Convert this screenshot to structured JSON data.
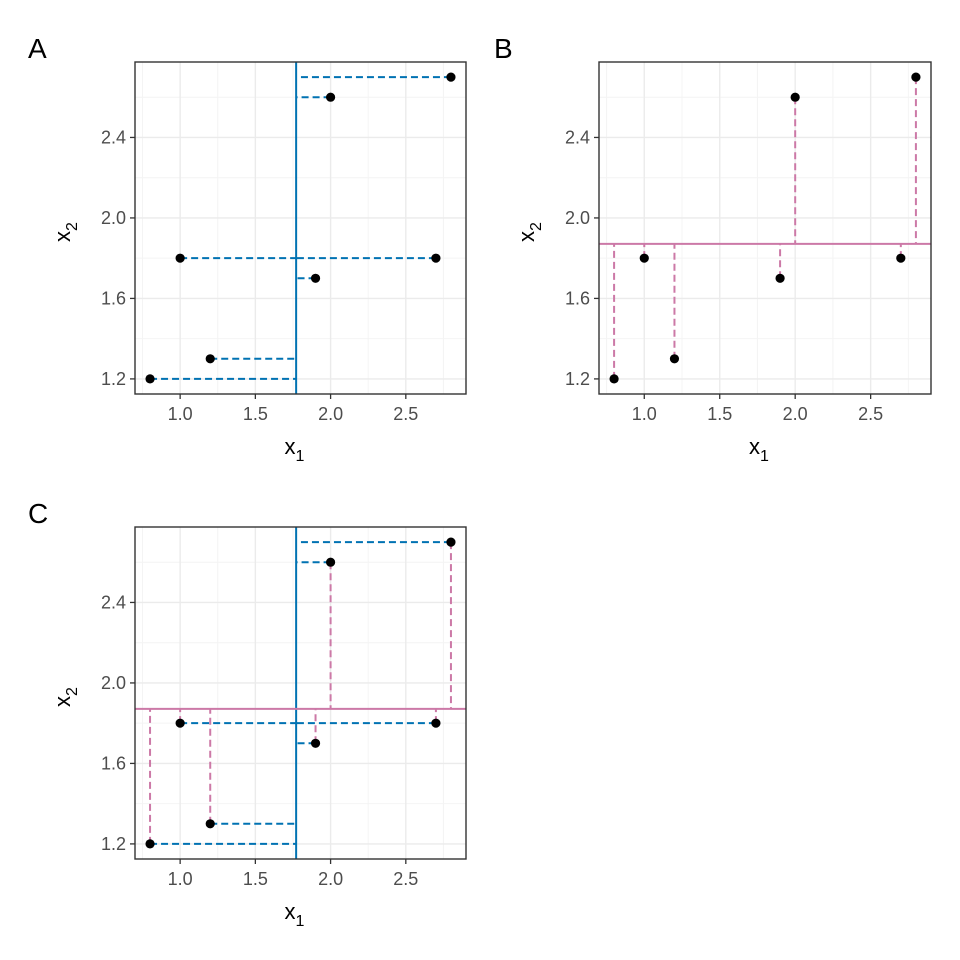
{
  "colors": {
    "mean_x1_line": "#0072B2",
    "mean_x2_line": "#CC79A7",
    "point_fill": "#000000",
    "grid_major": "#ebebeb",
    "grid_minor": "#f4f4f4",
    "panel_border": "#333333"
  },
  "chart_data": [
    {
      "type": "scatter",
      "tag": "A",
      "xlabel": "x",
      "xlabel_sub": "1",
      "ylabel": "x",
      "ylabel_sub": "2",
      "xlim": [
        0.7,
        2.9
      ],
      "ylim": [
        1.125,
        2.775
      ],
      "xticks": [
        "1.0",
        "1.5",
        "2.0",
        "2.5"
      ],
      "yticks": [
        "1.2",
        "1.6",
        "2.0",
        "2.4"
      ],
      "grid": true,
      "points": {
        "x": [
          0.8,
          1.0,
          1.2,
          1.9,
          2.0,
          2.7,
          2.8
        ],
        "y": [
          1.2,
          1.8,
          1.3,
          1.7,
          2.6,
          1.8,
          2.7
        ]
      },
      "mean_x1": 1.771,
      "mean_x2": 1.871,
      "show_mean_x1": true,
      "show_mean_x2": false
    },
    {
      "type": "scatter",
      "tag": "B",
      "xlabel": "x",
      "xlabel_sub": "1",
      "ylabel": "x",
      "ylabel_sub": "2",
      "xlim": [
        0.7,
        2.9
      ],
      "ylim": [
        1.125,
        2.775
      ],
      "xticks": [
        "1.0",
        "1.5",
        "2.0",
        "2.5"
      ],
      "yticks": [
        "1.2",
        "1.6",
        "2.0",
        "2.4"
      ],
      "grid": true,
      "points": {
        "x": [
          0.8,
          1.0,
          1.2,
          1.9,
          2.0,
          2.7,
          2.8
        ],
        "y": [
          1.2,
          1.8,
          1.3,
          1.7,
          2.6,
          1.8,
          2.7
        ]
      },
      "mean_x1": 1.771,
      "mean_x2": 1.871,
      "show_mean_x1": false,
      "show_mean_x2": true
    },
    {
      "type": "scatter",
      "tag": "C",
      "xlabel": "x",
      "xlabel_sub": "1",
      "ylabel": "x",
      "ylabel_sub": "2",
      "xlim": [
        0.7,
        2.9
      ],
      "ylim": [
        1.125,
        2.775
      ],
      "xticks": [
        "1.0",
        "1.5",
        "2.0",
        "2.5"
      ],
      "yticks": [
        "1.2",
        "1.6",
        "2.0",
        "2.4"
      ],
      "grid": true,
      "points": {
        "x": [
          0.8,
          1.0,
          1.2,
          1.9,
          2.0,
          2.7,
          2.8
        ],
        "y": [
          1.2,
          1.8,
          1.3,
          1.7,
          2.6,
          1.8,
          2.7
        ]
      },
      "mean_x1": 1.771,
      "mean_x2": 1.871,
      "show_mean_x1": true,
      "show_mean_x2": true
    }
  ]
}
